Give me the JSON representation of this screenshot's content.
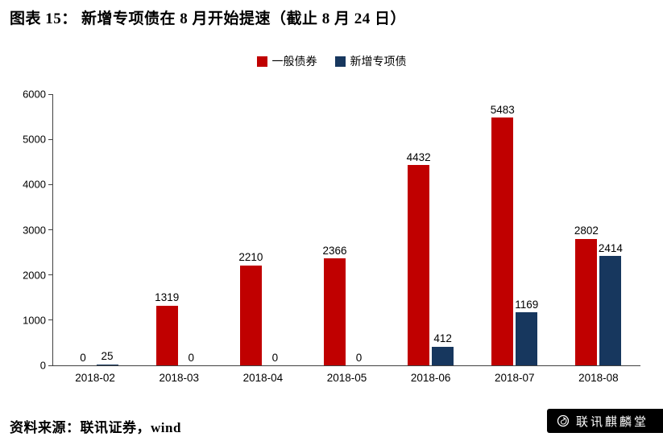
{
  "header": {
    "title": "图表 15：  新增专项债在 8 月开始提速（截止 8 月 24 日）"
  },
  "footer": {
    "source": "资料来源：联讯证券，wind",
    "watermark": "联讯麒麟堂"
  },
  "chart_data": {
    "type": "bar",
    "title": "新增专项债在 8 月开始提速（截止 8 月 24 日）",
    "categories": [
      "2018-02",
      "2018-03",
      "2018-04",
      "2018-05",
      "2018-06",
      "2018-07",
      "2018-08"
    ],
    "series": [
      {
        "name": "一般债券",
        "color": "#C00000",
        "values": [
          0,
          1319,
          2210,
          2366,
          4432,
          5483,
          2802
        ]
      },
      {
        "name": "新增专项债",
        "color": "#17375E",
        "values": [
          25,
          0,
          0,
          0,
          412,
          1169,
          2414
        ]
      }
    ],
    "xlabel": "",
    "ylabel": "",
    "ylim": [
      0,
      6000
    ],
    "yticks": [
      0,
      1000,
      2000,
      3000,
      4000,
      5000,
      6000
    ],
    "grid": false,
    "legend_position": "top",
    "data_labels": true
  }
}
